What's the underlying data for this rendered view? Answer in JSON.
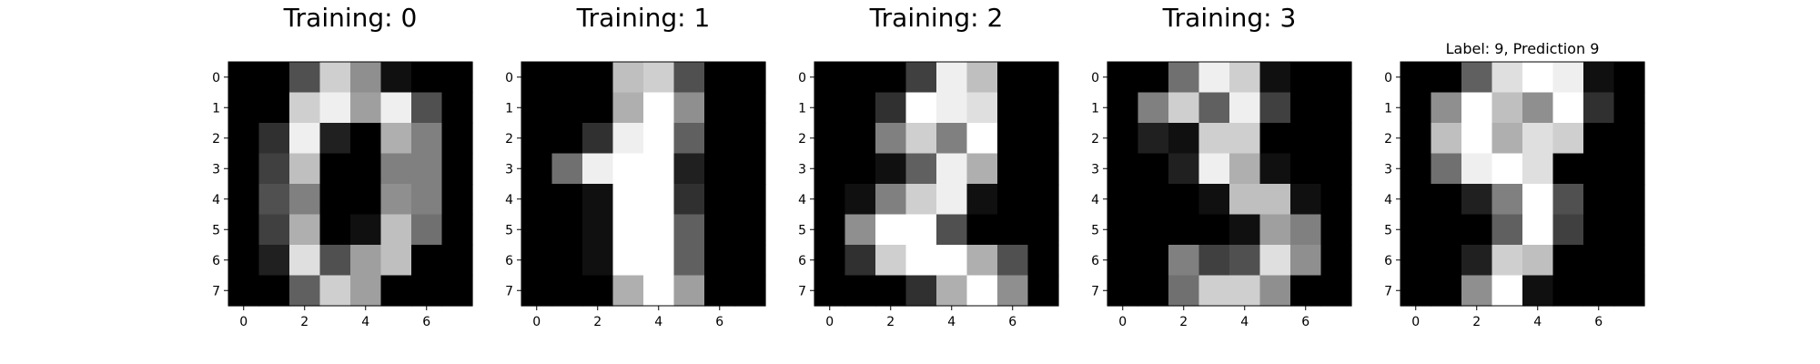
{
  "chart_data": [
    {
      "type": "heatmap",
      "title": "Training: 0",
      "colormap": "gray",
      "vmin": 0,
      "vmax": 16,
      "xticks": [
        "0",
        "2",
        "4",
        "6"
      ],
      "yticks": [
        "0",
        "1",
        "2",
        "3",
        "4",
        "5",
        "6",
        "7"
      ],
      "pixels": [
        [
          0,
          0,
          5,
          13,
          9,
          1,
          0,
          0
        ],
        [
          0,
          0,
          13,
          15,
          10,
          15,
          5,
          0
        ],
        [
          0,
          3,
          15,
          2,
          0,
          11,
          8,
          0
        ],
        [
          0,
          4,
          12,
          0,
          0,
          8,
          8,
          0
        ],
        [
          0,
          5,
          8,
          0,
          0,
          9,
          8,
          0
        ],
        [
          0,
          4,
          11,
          0,
          1,
          12,
          7,
          0
        ],
        [
          0,
          2,
          14,
          5,
          10,
          12,
          0,
          0
        ],
        [
          0,
          0,
          6,
          13,
          10,
          0,
          0,
          0
        ]
      ]
    },
    {
      "type": "heatmap",
      "title": "Training: 1",
      "colormap": "gray",
      "vmin": 0,
      "vmax": 16,
      "xticks": [
        "0",
        "2",
        "4",
        "6"
      ],
      "yticks": [
        "0",
        "1",
        "2",
        "3",
        "4",
        "5",
        "6",
        "7"
      ],
      "pixels": [
        [
          0,
          0,
          0,
          12,
          13,
          5,
          0,
          0
        ],
        [
          0,
          0,
          0,
          11,
          16,
          9,
          0,
          0
        ],
        [
          0,
          0,
          3,
          15,
          16,
          6,
          0,
          0
        ],
        [
          0,
          7,
          15,
          16,
          16,
          2,
          0,
          0
        ],
        [
          0,
          0,
          1,
          16,
          16,
          3,
          0,
          0
        ],
        [
          0,
          0,
          1,
          16,
          16,
          6,
          0,
          0
        ],
        [
          0,
          0,
          1,
          16,
          16,
          6,
          0,
          0
        ],
        [
          0,
          0,
          0,
          11,
          16,
          10,
          0,
          0
        ]
      ]
    },
    {
      "type": "heatmap",
      "title": "Training: 2",
      "colormap": "gray",
      "vmin": 0,
      "vmax": 16,
      "xticks": [
        "0",
        "2",
        "4",
        "6"
      ],
      "yticks": [
        "0",
        "1",
        "2",
        "3",
        "4",
        "5",
        "6",
        "7"
      ],
      "pixels": [
        [
          0,
          0,
          0,
          4,
          15,
          12,
          0,
          0
        ],
        [
          0,
          0,
          3,
          16,
          15,
          14,
          0,
          0
        ],
        [
          0,
          0,
          8,
          13,
          8,
          16,
          0,
          0
        ],
        [
          0,
          0,
          1,
          6,
          15,
          11,
          0,
          0
        ],
        [
          0,
          1,
          8,
          13,
          15,
          1,
          0,
          0
        ],
        [
          0,
          9,
          16,
          16,
          5,
          0,
          0,
          0
        ],
        [
          0,
          3,
          13,
          16,
          16,
          11,
          5,
          0
        ],
        [
          0,
          0,
          0,
          3,
          11,
          16,
          9,
          0
        ]
      ]
    },
    {
      "type": "heatmap",
      "title": "Training: 3",
      "colormap": "gray",
      "vmin": 0,
      "vmax": 16,
      "xticks": [
        "0",
        "2",
        "4",
        "6"
      ],
      "yticks": [
        "0",
        "1",
        "2",
        "3",
        "4",
        "5",
        "6",
        "7"
      ],
      "pixels": [
        [
          0,
          0,
          7,
          15,
          13,
          1,
          0,
          0
        ],
        [
          0,
          8,
          13,
          6,
          15,
          4,
          0,
          0
        ],
        [
          0,
          2,
          1,
          13,
          13,
          0,
          0,
          0
        ],
        [
          0,
          0,
          2,
          15,
          11,
          1,
          0,
          0
        ],
        [
          0,
          0,
          0,
          1,
          12,
          12,
          1,
          0
        ],
        [
          0,
          0,
          0,
          0,
          1,
          10,
          8,
          0
        ],
        [
          0,
          0,
          8,
          4,
          5,
          14,
          9,
          0
        ],
        [
          0,
          0,
          7,
          13,
          13,
          9,
          0,
          0
        ]
      ]
    },
    {
      "type": "heatmap",
      "title": "Label: 9, Prediction 9",
      "colormap": "gray",
      "vmin": 0,
      "vmax": 16,
      "xticks": [
        "0",
        "2",
        "4",
        "6"
      ],
      "yticks": [
        "0",
        "1",
        "2",
        "3",
        "4",
        "5",
        "6",
        "7"
      ],
      "pixels": [
        [
          0,
          0,
          6,
          14,
          16,
          15,
          1,
          0
        ],
        [
          0,
          9,
          16,
          12,
          9,
          16,
          3,
          0
        ],
        [
          0,
          12,
          16,
          11,
          14,
          13,
          0,
          0
        ],
        [
          0,
          7,
          15,
          16,
          14,
          0,
          0,
          0
        ],
        [
          0,
          0,
          2,
          8,
          16,
          5,
          0,
          0
        ],
        [
          0,
          0,
          0,
          6,
          16,
          4,
          0,
          0
        ],
        [
          0,
          0,
          2,
          13,
          12,
          0,
          0,
          0
        ],
        [
          0,
          0,
          9,
          16,
          1,
          0,
          0,
          0
        ]
      ]
    }
  ]
}
